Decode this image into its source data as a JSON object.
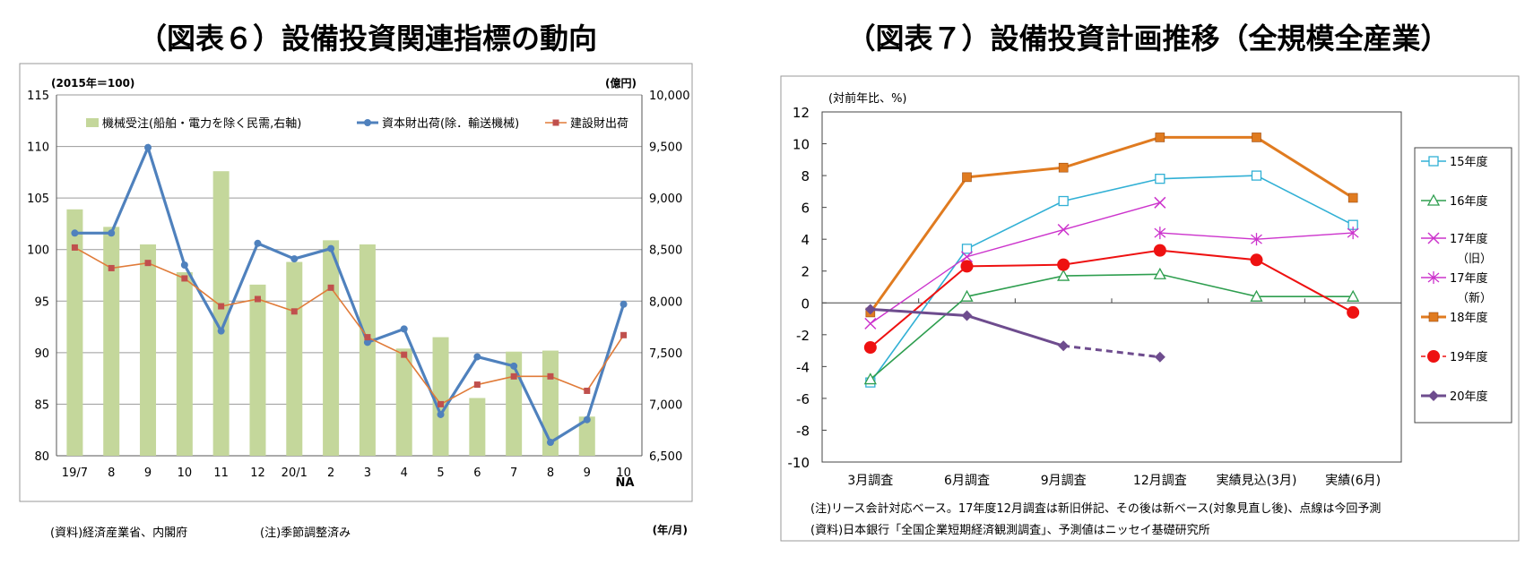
{
  "titles": {
    "fig6": "（図表６）設備投資関連指標の動向",
    "fig7": "（図表７）設備投資計画推移（全規模全産業）"
  },
  "chart_data": [
    {
      "type": "bar+line",
      "title": "（図表６）設備投資関連指標の動向",
      "left_unit": "(2015年＝100)",
      "right_unit": "(億円)",
      "x_unit": "(年/月)",
      "categories": [
        "19/7",
        "8",
        "9",
        "10",
        "11",
        "12",
        "20/1",
        "2",
        "3",
        "4",
        "5",
        "6",
        "7",
        "8",
        "9",
        "10"
      ],
      "left_axis": {
        "min": 80,
        "max": 115,
        "ticks": [
          "80",
          "85",
          "90",
          "95",
          "100",
          "105",
          "110",
          "115"
        ]
      },
      "right_axis": {
        "min": 6500,
        "max": 10000,
        "ticks": [
          "6,500",
          "7,000",
          "7,500",
          "8,000",
          "8,500",
          "9,000",
          "9,500",
          "10,000"
        ]
      },
      "series": [
        {
          "name": "機械受注(船舶・電力を除く民需,右軸)",
          "kind": "bar",
          "axis": "right",
          "color": "#c4d79b",
          "values": [
            8890,
            8720,
            8550,
            8280,
            9260,
            8160,
            8380,
            8590,
            8550,
            7540,
            7650,
            7060,
            7510,
            7520,
            6880,
            null
          ]
        },
        {
          "name": "資本財出荷(除．輸送機械)",
          "kind": "line",
          "axis": "left",
          "color": "#4f81bd",
          "marker": "circle",
          "values": [
            101.6,
            101.6,
            109.9,
            98.5,
            92.1,
            100.6,
            99.1,
            100.1,
            91.0,
            92.3,
            84.0,
            89.6,
            88.7,
            81.3,
            83.5,
            94.7
          ]
        },
        {
          "name": "建設財出荷",
          "kind": "line",
          "axis": "left",
          "color": "#e07b39",
          "marker": "square",
          "values": [
            100.2,
            98.2,
            98.7,
            97.2,
            94.5,
            95.2,
            94.0,
            96.3,
            91.5,
            89.8,
            85.0,
            86.9,
            87.7,
            87.7,
            86.3,
            91.7
          ]
        }
      ],
      "annotations": {
        "na": "NA"
      },
      "notes": {
        "source": "(資料)経済産業省、内閣府",
        "note": "(注)季節調整済み"
      }
    },
    {
      "type": "line",
      "title": "（図表７）設備投資計画推移（全規模全産業）",
      "y_unit": "(対前年比、%)",
      "categories": [
        "3月調査",
        "6月調査",
        "9月調査",
        "12月調査",
        "実績見込(3月)",
        "実績(6月)"
      ],
      "y_axis": {
        "min": -10,
        "max": 12,
        "ticks": [
          "-10",
          "-8",
          "-6",
          "-4",
          "-2",
          "0",
          "2",
          "4",
          "6",
          "8",
          "10",
          "12"
        ]
      },
      "series": [
        {
          "name": "15年度",
          "color": "#31b0d5",
          "marker": "square-open",
          "values": [
            -5.0,
            3.4,
            6.4,
            7.8,
            8.0,
            4.9
          ]
        },
        {
          "name": "16年度",
          "color": "#2e9e4f",
          "marker": "triangle-open",
          "values": [
            -4.8,
            0.4,
            1.7,
            1.8,
            0.4,
            0.4
          ]
        },
        {
          "name": "17年度(旧)",
          "color": "#cc33cc",
          "marker": "x",
          "values": [
            -1.3,
            2.9,
            4.6,
            6.3,
            null,
            null
          ]
        },
        {
          "name": "17年度(新)",
          "color": "#cc33cc",
          "marker": "asterisk",
          "values": [
            null,
            null,
            null,
            4.4,
            4.0,
            4.4
          ]
        },
        {
          "name": "18年度",
          "color": "#e07b20",
          "marker": "square",
          "values": [
            -0.6,
            7.9,
            8.5,
            10.4,
            10.4,
            6.6
          ]
        },
        {
          "name": "19年度",
          "color": "#ee1111",
          "marker": "circle",
          "values": [
            -2.8,
            2.3,
            2.4,
            3.3,
            2.7,
            -0.6
          ]
        },
        {
          "name": "20年度",
          "color": "#6e4c8e",
          "marker": "diamond",
          "values": [
            -0.4,
            -0.8,
            -2.7,
            -3.4,
            null,
            null
          ],
          "dashed_from_index": 2
        }
      ],
      "legend_labels": [
        "15年度",
        "16年度",
        "17年度",
        "（旧）",
        "17年度",
        "（新）",
        "18年度",
        "19年度",
        "20年度"
      ],
      "notes": {
        "note": "(注)リース会計対応ベース。17年度12月調査は新旧併記、その後は新ベース(対象見直し後)、点線は今回予測",
        "source": "(資料)日本銀行「全国企業短期経済観測調査」、予測値はニッセイ基礎研究所"
      }
    }
  ]
}
